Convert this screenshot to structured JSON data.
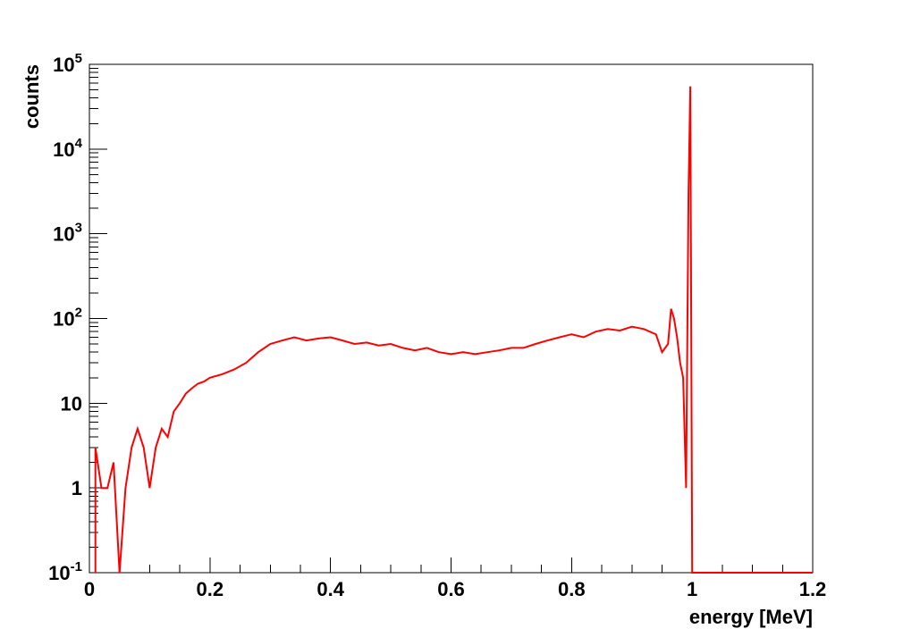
{
  "chart_data": {
    "type": "line",
    "title": "",
    "xlabel": "energy [MeV]",
    "ylabel": "counts",
    "xlim": [
      0,
      1.2
    ],
    "ylim": [
      0.1,
      100000
    ],
    "yscale": "log",
    "grid": false,
    "line_color": "#ff0000",
    "x_ticks": [
      {
        "value": 0,
        "label": "0"
      },
      {
        "value": 0.2,
        "label": "0.2"
      },
      {
        "value": 0.4,
        "label": "0.4"
      },
      {
        "value": 0.6,
        "label": "0.6"
      },
      {
        "value": 0.8,
        "label": "0.8"
      },
      {
        "value": 1.0,
        "label": "1"
      },
      {
        "value": 1.2,
        "label": "1.2"
      }
    ],
    "y_ticks": [
      {
        "value": 0.1,
        "base": "10",
        "exp": "-1"
      },
      {
        "value": 1,
        "base": "1",
        "exp": ""
      },
      {
        "value": 10,
        "base": "10",
        "exp": ""
      },
      {
        "value": 100,
        "base": "10",
        "exp": "2"
      },
      {
        "value": 1000,
        "base": "10",
        "exp": "3"
      },
      {
        "value": 10000,
        "base": "10",
        "exp": "4"
      },
      {
        "value": 100000,
        "base": "10",
        "exp": "5"
      }
    ],
    "x": [
      0.01,
      0.02,
      0.03,
      0.04,
      0.05,
      0.06,
      0.07,
      0.08,
      0.09,
      0.1,
      0.11,
      0.12,
      0.13,
      0.14,
      0.15,
      0.16,
      0.17,
      0.18,
      0.19,
      0.2,
      0.22,
      0.24,
      0.26,
      0.28,
      0.3,
      0.32,
      0.34,
      0.36,
      0.38,
      0.4,
      0.42,
      0.44,
      0.46,
      0.48,
      0.5,
      0.52,
      0.54,
      0.56,
      0.58,
      0.6,
      0.62,
      0.64,
      0.66,
      0.68,
      0.7,
      0.72,
      0.74,
      0.76,
      0.78,
      0.8,
      0.82,
      0.84,
      0.86,
      0.88,
      0.9,
      0.92,
      0.94,
      0.95,
      0.96,
      0.965,
      0.97,
      0.975,
      0.98,
      0.985,
      0.99,
      0.994,
      0.997,
      1.0,
      1.001,
      1.01,
      1.05,
      1.1,
      1.15,
      1.2
    ],
    "y": [
      3,
      1,
      1,
      2,
      0.1,
      1,
      3,
      5,
      3,
      1,
      3,
      5,
      4,
      8,
      10,
      13,
      15,
      17,
      18,
      20,
      22,
      25,
      30,
      40,
      50,
      55,
      60,
      55,
      58,
      60,
      55,
      50,
      52,
      48,
      50,
      45,
      42,
      45,
      40,
      38,
      40,
      38,
      40,
      42,
      45,
      45,
      50,
      55,
      60,
      65,
      60,
      70,
      75,
      72,
      80,
      75,
      65,
      40,
      50,
      130,
      100,
      60,
      30,
      20,
      1,
      3000,
      55000,
      0.1,
      0.1,
      0.1,
      0.1,
      0.1,
      0.1,
      0.1
    ]
  }
}
